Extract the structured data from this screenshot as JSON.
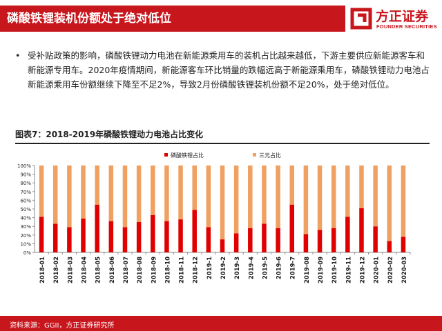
{
  "header": {
    "title": "磷酸铁锂装机份额处于绝对低位",
    "logo_cn": "方正证券",
    "logo_en": "FOUNDER SECURITIES",
    "brand_color": "#c8161d"
  },
  "bullet": {
    "marker": "•",
    "text": "受补贴政策的影响，磷酸铁锂动力电池在新能源乘用车的装机占比越来越低，下游主要供应新能源客车和新能源专用车。2020年疫情期间，新能源客车环比销量的跌幅远高于新能源乘用车，磷酸铁锂动力电池占新能源乘用车份额继续下降至不足2%，导致2月份磷酸铁锂装机份额不足20%，处于绝对低位。"
  },
  "figure": {
    "title": "图表7：2018-2019年磷酸铁锂动力电池占比变化"
  },
  "chart_data": {
    "type": "bar",
    "stacked": true,
    "categories": [
      "2018-01",
      "2018-02",
      "2018-03",
      "2018-04",
      "2018-05",
      "2018-06",
      "2018-07",
      "2018-08",
      "2018-09",
      "2018-10",
      "2018-11",
      "2018-12",
      "2019-1",
      "2019-2",
      "2019-3",
      "2019-4",
      "2019-5",
      "2019-6",
      "2019-7",
      "2019-08",
      "2019-09",
      "2019-10",
      "2019-11",
      "2019-12",
      "2020-01",
      "2020-02",
      "2020-03"
    ],
    "series": [
      {
        "name": "磷酸铁锂占比",
        "color": "#e00000",
        "values": [
          41,
          33,
          29,
          39,
          55,
          36,
          29,
          35,
          43,
          36,
          38,
          49,
          29,
          15,
          22,
          28,
          33,
          28,
          55,
          21,
          26,
          28,
          41,
          51,
          30,
          13,
          18
        ]
      },
      {
        "name": "三元占比",
        "color": "#f0a060",
        "values": [
          59,
          67,
          71,
          61,
          45,
          64,
          71,
          65,
          57,
          64,
          62,
          51,
          71,
          85,
          78,
          72,
          67,
          72,
          45,
          79,
          74,
          72,
          59,
          49,
          70,
          87,
          82
        ]
      }
    ],
    "yticks": [
      "0%",
      "10%",
      "20%",
      "30%",
      "40%",
      "50%",
      "60%",
      "70%",
      "80%",
      "90%",
      "100%"
    ],
    "ylim": [
      0,
      100
    ],
    "grid": false,
    "legend_position": "top"
  },
  "footer": {
    "source": "资料来源：GGII，方正证券研究所"
  }
}
